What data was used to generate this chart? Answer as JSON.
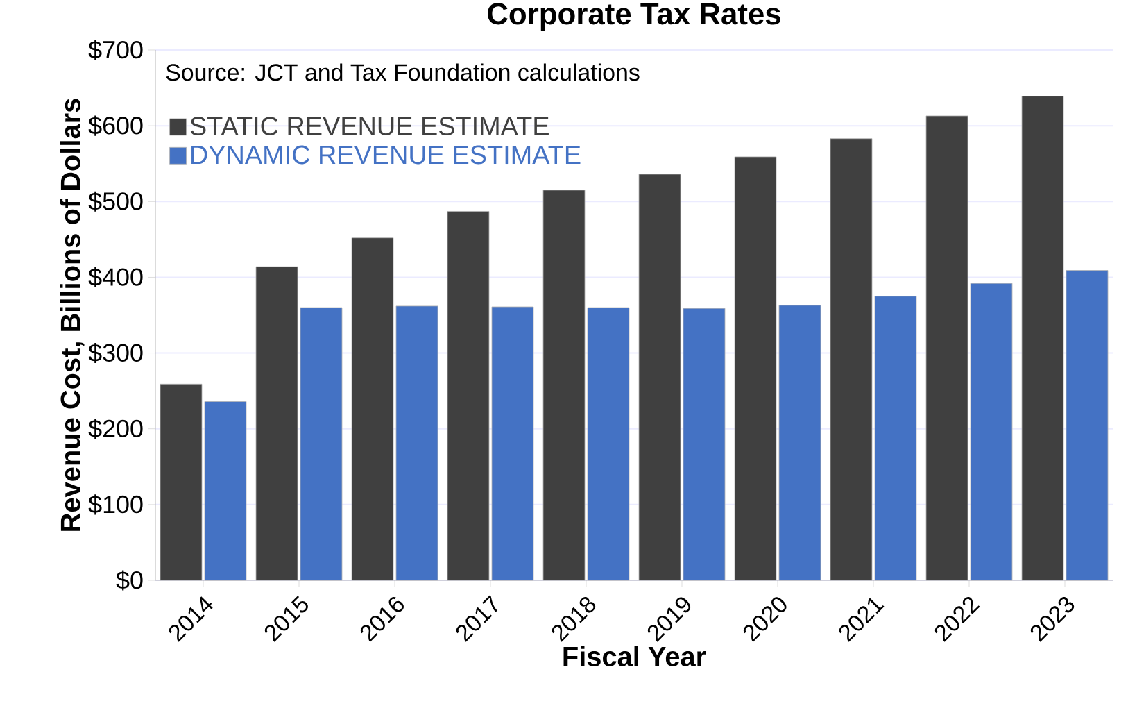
{
  "chart_data": {
    "type": "bar",
    "title": "Corporate Tax Rates",
    "xlabel": "Fiscal Year",
    "ylabel": "Revenue Cost, Billions of Dollars",
    "categories": [
      "2014",
      "2015",
      "2016",
      "2017",
      "2018",
      "2019",
      "2020",
      "2021",
      "2022",
      "2023"
    ],
    "series": [
      {
        "name": "STATIC REVENUE ESTIMATE",
        "color": "#404040",
        "values": [
          259,
          414,
          452,
          487,
          515,
          536,
          559,
          583,
          613,
          639
        ]
      },
      {
        "name": "DYNAMIC REVENUE ESTIMATE",
        "color": "#4472c4",
        "values": [
          236,
          360,
          362,
          361,
          360,
          359,
          363,
          375,
          392,
          409
        ]
      }
    ],
    "ylim": [
      0,
      700
    ],
    "yticks": [
      {
        "value": 0,
        "label": "$0"
      },
      {
        "value": 100,
        "label": "$100"
      },
      {
        "value": 200,
        "label": "$200"
      },
      {
        "value": 300,
        "label": "$300"
      },
      {
        "value": 400,
        "label": "$400"
      },
      {
        "value": 500,
        "label": "$500"
      },
      {
        "value": 600,
        "label": "$600"
      },
      {
        "value": 700,
        "label": "$700"
      }
    ],
    "grid": "y",
    "legend": "top left",
    "annotations": [
      "Source: JCT and Tax Foundation calculations"
    ]
  }
}
